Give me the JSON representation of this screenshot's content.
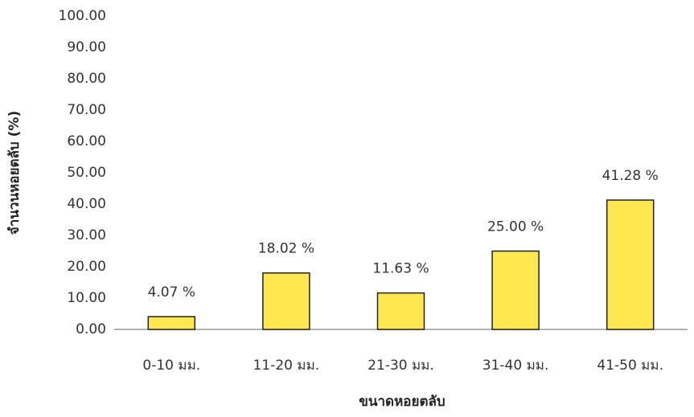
{
  "chart_data": {
    "type": "bar",
    "x_label": "ขนาดหอยตลับ",
    "y_label": "จำนวนหอยตลับ (%)",
    "categories": [
      "0-10 มม.",
      "11-20 มม.",
      "21-30 มม.",
      "31-40 มม.",
      "41-50 มม."
    ],
    "values": [
      4.07,
      18.02,
      11.63,
      25.0,
      41.28
    ],
    "value_labels": [
      "4.07 %",
      "18.02 %",
      "11.63 %",
      "25.00 %",
      "41.28 %"
    ],
    "color": "#ffe84f",
    "ylim": [
      0,
      100
    ],
    "yticks": [
      {
        "value": 0,
        "label": "0.00"
      },
      {
        "value": 10,
        "label": "10.00"
      },
      {
        "value": 20,
        "label": "20.00"
      },
      {
        "value": 30,
        "label": "30.00"
      },
      {
        "value": 40,
        "label": "40.00"
      },
      {
        "value": 50,
        "label": "50.00"
      },
      {
        "value": 60,
        "label": "60.00"
      },
      {
        "value": 70,
        "label": "70.00"
      },
      {
        "value": 80,
        "label": "80.00"
      },
      {
        "value": 90,
        "label": "90.00"
      },
      {
        "value": 100,
        "label": "100.00"
      }
    ],
    "grid": false
  }
}
